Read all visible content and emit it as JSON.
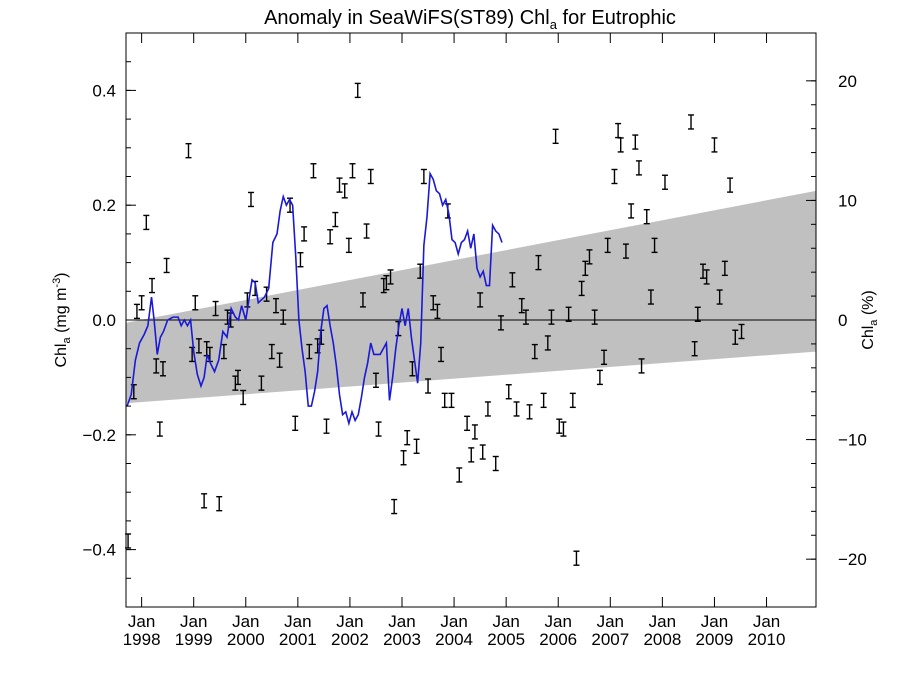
{
  "chart_data": {
    "type": "scatter",
    "title": {
      "main": "Anomaly in SeaWiFS(ST89) Chl",
      "sub": "a",
      "tail": " for Eutrophic"
    },
    "ylabel_left": {
      "main": "Chl",
      "sub": "a",
      "unit": " (mg m",
      "sup": "-3",
      "close": ")"
    },
    "ylabel_right": {
      "main": "Chl",
      "sub": "a",
      "unit": " (%)"
    },
    "ylim": [
      -0.5,
      0.5
    ],
    "ylim_right": [
      -24,
      24
    ],
    "xlim": [
      1997.7,
      2010.95
    ],
    "yticks": [
      {
        "value": 0.4,
        "label": "0.4"
      },
      {
        "value": 0.2,
        "label": "0.2"
      },
      {
        "value": 0.0,
        "label": "0.0"
      },
      {
        "value": -0.2,
        "label": "−0.2"
      },
      {
        "value": -0.4,
        "label": "−0.4"
      }
    ],
    "yticks_right": [
      {
        "value": 20,
        "label": "20"
      },
      {
        "value": 10,
        "label": "10"
      },
      {
        "value": 0,
        "label": "0"
      },
      {
        "value": -10,
        "label": "−10"
      },
      {
        "value": -20,
        "label": "−20"
      }
    ],
    "xticks": [
      {
        "value": 1998.0,
        "month": "Jan",
        "year": "1998"
      },
      {
        "value": 1999.0,
        "month": "Jan",
        "year": "1999"
      },
      {
        "value": 2000.0,
        "month": "Jan",
        "year": "2000"
      },
      {
        "value": 2001.0,
        "month": "Jan",
        "year": "2001"
      },
      {
        "value": 2002.0,
        "month": "Jan",
        "year": "2002"
      },
      {
        "value": 2003.0,
        "month": "Jan",
        "year": "2003"
      },
      {
        "value": 2004.0,
        "month": "Jan",
        "year": "2004"
      },
      {
        "value": 2005.0,
        "month": "Jan",
        "year": "2005"
      },
      {
        "value": 2006.0,
        "month": "Jan",
        "year": "2006"
      },
      {
        "value": 2007.0,
        "month": "Jan",
        "year": "2007"
      },
      {
        "value": 2008.0,
        "month": "Jan",
        "year": "2008"
      },
      {
        "value": 2009.0,
        "month": "Jan",
        "year": "2009"
      },
      {
        "value": 2010.0,
        "month": "Jan",
        "year": "2010"
      }
    ],
    "zero_line": 0.0,
    "band": {
      "color": "#c0c0c0",
      "upper": [
        [
          1997.7,
          -0.005
        ],
        [
          2010.95,
          0.225
        ]
      ],
      "lower": [
        [
          1997.7,
          -0.145
        ],
        [
          2010.95,
          -0.055
        ]
      ]
    },
    "points": [
      [
        1997.74,
        -0.385
      ],
      [
        1997.85,
        -0.125
      ],
      [
        1997.91,
        0.015
      ],
      [
        1998.0,
        0.03
      ],
      [
        1998.09,
        0.17
      ],
      [
        1998.2,
        0.06
      ],
      [
        1998.28,
        -0.08
      ],
      [
        1998.35,
        -0.19
      ],
      [
        1998.41,
        -0.085
      ],
      [
        1998.48,
        0.095
      ],
      [
        1998.9,
        0.295
      ],
      [
        1998.97,
        -0.06
      ],
      [
        1999.03,
        0.03
      ],
      [
        1999.1,
        -0.045
      ],
      [
        1999.2,
        -0.315
      ],
      [
        1999.25,
        -0.05
      ],
      [
        1999.31,
        -0.06
      ],
      [
        1999.42,
        0.02
      ],
      [
        1999.49,
        -0.32
      ],
      [
        1999.58,
        -0.055
      ],
      [
        1999.65,
        0.005
      ],
      [
        1999.71,
        0.0
      ],
      [
        1999.8,
        -0.11
      ],
      [
        1999.85,
        -0.1
      ],
      [
        1999.95,
        -0.135
      ],
      [
        2000.03,
        0.035
      ],
      [
        2000.1,
        0.21
      ],
      [
        2000.18,
        0.055
      ],
      [
        2000.3,
        -0.11
      ],
      [
        2000.4,
        0.045
      ],
      [
        2000.5,
        -0.055
      ],
      [
        2000.58,
        0.025
      ],
      [
        2000.65,
        -0.07
      ],
      [
        2000.72,
        0.005
      ],
      [
        2000.85,
        0.2
      ],
      [
        2000.95,
        -0.18
      ],
      [
        2001.05,
        0.105
      ],
      [
        2001.12,
        0.15
      ],
      [
        2001.22,
        -0.055
      ],
      [
        2001.3,
        0.26
      ],
      [
        2001.38,
        -0.045
      ],
      [
        2001.45,
        -0.03
      ],
      [
        2001.55,
        -0.185
      ],
      [
        2001.62,
        0.145
      ],
      [
        2001.72,
        0.175
      ],
      [
        2001.8,
        0.235
      ],
      [
        2001.9,
        0.225
      ],
      [
        2001.98,
        0.13
      ],
      [
        2002.05,
        0.26
      ],
      [
        2002.15,
        0.4
      ],
      [
        2002.25,
        0.035
      ],
      [
        2002.32,
        0.155
      ],
      [
        2002.4,
        0.25
      ],
      [
        2002.5,
        -0.105
      ],
      [
        2002.55,
        -0.19
      ],
      [
        2002.65,
        0.06
      ],
      [
        2002.7,
        0.065
      ],
      [
        2002.78,
        0.075
      ],
      [
        2002.85,
        -0.325
      ],
      [
        2002.93,
        -0.015
      ],
      [
        2003.03,
        -0.24
      ],
      [
        2003.1,
        -0.205
      ],
      [
        2003.2,
        -0.085
      ],
      [
        2003.28,
        -0.22
      ],
      [
        2003.35,
        0.085
      ],
      [
        2003.42,
        0.25
      ],
      [
        2003.5,
        -0.115
      ],
      [
        2003.6,
        0.03
      ],
      [
        2003.68,
        0.015
      ],
      [
        2003.75,
        -0.06
      ],
      [
        2003.82,
        -0.14
      ],
      [
        2003.88,
        0.19
      ],
      [
        2003.95,
        -0.14
      ],
      [
        2004.1,
        -0.27
      ],
      [
        2004.25,
        -0.18
      ],
      [
        2004.33,
        -0.235
      ],
      [
        2004.4,
        -0.195
      ],
      [
        2004.5,
        0.035
      ],
      [
        2004.55,
        -0.23
      ],
      [
        2004.65,
        -0.155
      ],
      [
        2004.8,
        -0.25
      ],
      [
        2004.9,
        -0.005
      ],
      [
        2005.05,
        -0.125
      ],
      [
        2005.12,
        0.07
      ],
      [
        2005.2,
        -0.155
      ],
      [
        2005.3,
        0.025
      ],
      [
        2005.38,
        0.005
      ],
      [
        2005.45,
        -0.16
      ],
      [
        2005.55,
        -0.055
      ],
      [
        2005.62,
        0.1
      ],
      [
        2005.72,
        -0.14
      ],
      [
        2005.8,
        -0.04
      ],
      [
        2005.87,
        0.005
      ],
      [
        2005.95,
        0.32
      ],
      [
        2006.02,
        -0.185
      ],
      [
        2006.1,
        -0.19
      ],
      [
        2006.2,
        0.01
      ],
      [
        2006.28,
        -0.14
      ],
      [
        2006.35,
        -0.415
      ],
      [
        2006.45,
        0.055
      ],
      [
        2006.52,
        0.09
      ],
      [
        2006.6,
        0.11
      ],
      [
        2006.7,
        0.005
      ],
      [
        2006.8,
        -0.1
      ],
      [
        2006.88,
        -0.065
      ],
      [
        2006.95,
        0.13
      ],
      [
        2007.08,
        0.25
      ],
      [
        2007.15,
        0.33
      ],
      [
        2007.2,
        0.305
      ],
      [
        2007.3,
        0.12
      ],
      [
        2007.4,
        0.19
      ],
      [
        2007.48,
        0.31
      ],
      [
        2007.55,
        0.265
      ],
      [
        2007.6,
        -0.08
      ],
      [
        2007.7,
        0.18
      ],
      [
        2007.78,
        0.04
      ],
      [
        2007.85,
        0.13
      ],
      [
        2008.05,
        0.24
      ],
      [
        2008.55,
        0.345
      ],
      [
        2008.62,
        -0.05
      ],
      [
        2008.68,
        0.01
      ],
      [
        2008.78,
        0.085
      ],
      [
        2008.85,
        0.075
      ],
      [
        2009.0,
        0.305
      ],
      [
        2009.1,
        0.04
      ],
      [
        2009.2,
        0.09
      ],
      [
        2009.3,
        0.235
      ],
      [
        2009.4,
        -0.03
      ],
      [
        2009.52,
        -0.02
      ]
    ],
    "line": {
      "color": "#1a1ad6",
      "points": [
        [
          1997.72,
          -0.15
        ],
        [
          1997.8,
          -0.13
        ],
        [
          1997.88,
          -0.07
        ],
        [
          1997.96,
          -0.04
        ],
        [
          1998.05,
          -0.025
        ],
        [
          1998.12,
          -0.01
        ],
        [
          1998.19,
          0.04
        ],
        [
          1998.24,
          0.0
        ],
        [
          1998.3,
          -0.06
        ],
        [
          1998.36,
          -0.03
        ],
        [
          1998.42,
          -0.02
        ],
        [
          1998.5,
          0.0
        ],
        [
          1998.6,
          0.005
        ],
        [
          1998.7,
          0.005
        ],
        [
          1998.76,
          -0.01
        ],
        [
          1998.82,
          0.0
        ],
        [
          1998.88,
          -0.01
        ],
        [
          1998.94,
          0.0
        ],
        [
          1999.0,
          -0.055
        ],
        [
          1999.07,
          -0.095
        ],
        [
          1999.14,
          -0.115
        ],
        [
          1999.2,
          -0.1
        ],
        [
          1999.26,
          -0.06
        ],
        [
          1999.32,
          -0.075
        ],
        [
          1999.4,
          -0.09
        ],
        [
          1999.48,
          -0.07
        ],
        [
          1999.56,
          -0.02
        ],
        [
          1999.64,
          -0.03
        ],
        [
          1999.72,
          0.02
        ],
        [
          1999.8,
          0.005
        ],
        [
          1999.86,
          0.0
        ],
        [
          1999.92,
          0.025
        ],
        [
          2000.0,
          0.0
        ],
        [
          2000.06,
          0.035
        ],
        [
          2000.12,
          0.07
        ],
        [
          2000.18,
          0.065
        ],
        [
          2000.24,
          0.03
        ],
        [
          2000.3,
          0.035
        ],
        [
          2000.36,
          0.04
        ],
        [
          2000.44,
          0.055
        ],
        [
          2000.52,
          0.135
        ],
        [
          2000.6,
          0.15
        ],
        [
          2000.66,
          0.19
        ],
        [
          2000.72,
          0.215
        ],
        [
          2000.78,
          0.2
        ],
        [
          2000.84,
          0.21
        ],
        [
          2000.9,
          0.2
        ],
        [
          2000.96,
          0.11
        ],
        [
          2001.02,
          0.0
        ],
        [
          2001.08,
          -0.05
        ],
        [
          2001.14,
          -0.09
        ],
        [
          2001.2,
          -0.15
        ],
        [
          2001.26,
          -0.15
        ],
        [
          2001.32,
          -0.125
        ],
        [
          2001.38,
          -0.09
        ],
        [
          2001.44,
          -0.02
        ],
        [
          2001.5,
          0.02
        ],
        [
          2001.56,
          0.025
        ],
        [
          2001.62,
          -0.01
        ],
        [
          2001.68,
          -0.04
        ],
        [
          2001.74,
          -0.08
        ],
        [
          2001.8,
          -0.13
        ],
        [
          2001.86,
          -0.165
        ],
        [
          2001.92,
          -0.16
        ],
        [
          2001.98,
          -0.18
        ],
        [
          2002.04,
          -0.16
        ],
        [
          2002.1,
          -0.175
        ],
        [
          2002.16,
          -0.165
        ],
        [
          2002.22,
          -0.135
        ],
        [
          2002.28,
          -0.1
        ],
        [
          2002.34,
          -0.075
        ],
        [
          2002.4,
          -0.04
        ],
        [
          2002.46,
          -0.06
        ],
        [
          2002.52,
          -0.06
        ],
        [
          2002.58,
          -0.06
        ],
        [
          2002.64,
          -0.05
        ],
        [
          2002.7,
          -0.04
        ],
        [
          2002.76,
          -0.14
        ],
        [
          2002.82,
          -0.1
        ],
        [
          2002.88,
          -0.05
        ],
        [
          2002.94,
          -0.01
        ],
        [
          2003.0,
          0.02
        ],
        [
          2003.06,
          -0.01
        ],
        [
          2003.12,
          0.02
        ],
        [
          2003.18,
          -0.03
        ],
        [
          2003.24,
          -0.07
        ],
        [
          2003.3,
          -0.11
        ],
        [
          2003.36,
          -0.04
        ],
        [
          2003.42,
          0.13
        ],
        [
          2003.48,
          0.18
        ],
        [
          2003.54,
          0.255
        ],
        [
          2003.6,
          0.245
        ],
        [
          2003.66,
          0.225
        ],
        [
          2003.72,
          0.22
        ],
        [
          2003.78,
          0.2
        ],
        [
          2003.84,
          0.21
        ],
        [
          2003.9,
          0.185
        ],
        [
          2003.96,
          0.14
        ],
        [
          2004.02,
          0.135
        ],
        [
          2004.08,
          0.115
        ],
        [
          2004.14,
          0.135
        ],
        [
          2004.2,
          0.14
        ],
        [
          2004.26,
          0.155
        ],
        [
          2004.32,
          0.125
        ],
        [
          2004.38,
          0.15
        ],
        [
          2004.44,
          0.09
        ],
        [
          2004.5,
          0.075
        ],
        [
          2004.56,
          0.085
        ],
        [
          2004.62,
          0.06
        ],
        [
          2004.68,
          0.06
        ],
        [
          2004.74,
          0.165
        ],
        [
          2004.8,
          0.155
        ],
        [
          2004.86,
          0.15
        ],
        [
          2004.92,
          0.135
        ]
      ]
    }
  }
}
